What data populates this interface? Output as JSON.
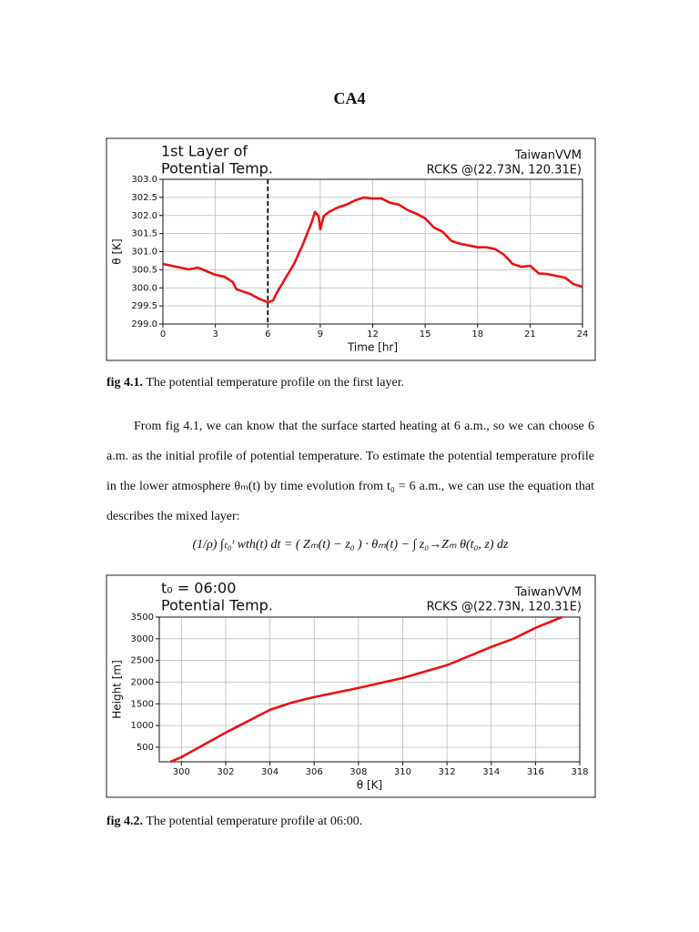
{
  "title": "CA4",
  "chart_data": [
    {
      "type": "line",
      "title": [
        "1st Layer of",
        "Potential Temp."
      ],
      "annotation": [
        "TaiwanVVM",
        "RCKS @(22.73N, 120.31E)"
      ],
      "xlabel": "Time [hr]",
      "ylabel": "θ [K]",
      "x": [
        0,
        1,
        1.5,
        2,
        2.5,
        3,
        3.5,
        4,
        4.2,
        5,
        5.5,
        6,
        6.3,
        6.5,
        7,
        7.5,
        8,
        8.5,
        8.7,
        8.9,
        9,
        9.2,
        9.5,
        10,
        10.5,
        11,
        11.5,
        12,
        12.5,
        13,
        13.5,
        14,
        14.5,
        15,
        15.5,
        16,
        16.5,
        17,
        17.5,
        18,
        18.5,
        19,
        19.5,
        20,
        20.5,
        21,
        21.5,
        22,
        22.5,
        23,
        23.5,
        24
      ],
      "values": [
        300.66,
        300.56,
        300.51,
        300.56,
        300.46,
        300.36,
        300.31,
        300.16,
        299.96,
        299.83,
        299.7,
        299.6,
        299.65,
        299.85,
        300.26,
        300.66,
        301.2,
        301.8,
        302.1,
        301.98,
        301.62,
        301.98,
        302.1,
        302.22,
        302.3,
        302.42,
        302.5,
        302.47,
        302.47,
        302.35,
        302.3,
        302.15,
        302.05,
        301.92,
        301.67,
        301.55,
        301.3,
        301.22,
        301.17,
        301.12,
        301.12,
        301.07,
        300.92,
        300.66,
        300.58,
        300.61,
        300.4,
        300.38,
        300.33,
        300.28,
        300.1,
        300.03
      ],
      "color": "#ee1111",
      "vlines": [
        6
      ],
      "xlim": [
        0,
        24
      ],
      "xticks": [
        0,
        3,
        6,
        9,
        12,
        15,
        18,
        21,
        24
      ],
      "ylim": [
        299,
        303
      ],
      "yticks": [
        {
          "value": 299,
          "label": "299.0"
        },
        299.5,
        {
          "value": 300,
          "label": "300.0"
        },
        300.5,
        {
          "value": 301,
          "label": "301.0"
        },
        301.5,
        {
          "value": 302,
          "label": "302.0"
        },
        302.5,
        {
          "value": 303,
          "label": "303.0"
        }
      ],
      "grid": true
    },
    {
      "type": "line",
      "title": [
        "t₀ = 06:00",
        "Potential Temp."
      ],
      "annotation": [
        "TaiwanVVM",
        "RCKS @(22.73N, 120.31E)"
      ],
      "xlabel": "θ [K]",
      "ylabel": "Height [m]",
      "x": [
        299.5,
        300,
        302,
        304,
        305,
        306,
        308,
        310,
        312,
        314,
        315,
        316,
        317.2
      ],
      "values": [
        164,
        270,
        836,
        1361,
        1530,
        1655,
        1865,
        2097,
        2390,
        2811,
        3000,
        3252,
        3500
      ],
      "color": "#ee1111",
      "xlim": [
        299,
        318
      ],
      "xticks": [
        300,
        302,
        304,
        306,
        308,
        310,
        312,
        314,
        316,
        318
      ],
      "ylim": [
        164,
        3500
      ],
      "yticks": [
        500,
        1000,
        1500,
        2000,
        2500,
        3000,
        3500
      ],
      "grid": true
    }
  ],
  "captions": [
    {
      "label": "fig 4.1.",
      "text": "The potential temperature profile on the first layer."
    },
    {
      "label": "fig 4.2.",
      "text": "The potential temperature profile at 06:00."
    }
  ],
  "paragraph": "From fig 4.1, we can know that the surface started heating at 6 a.m., so we can choose 6 a.m. as the initial profile of potential temperature. To estimate the potential temperature profile in the lower atmosphere θₘ(t) by time evolution from t₀ = 6 a.m., we can use the equation that describes the mixed layer:",
  "equation": "(1/ρ) ∫ₜ₀ᵗ wth(t) dt = ( Zₘ(t) − z₀ ) · θₘ(t) − ∫ z₀→Zₘ θ(t₀, z) dz"
}
